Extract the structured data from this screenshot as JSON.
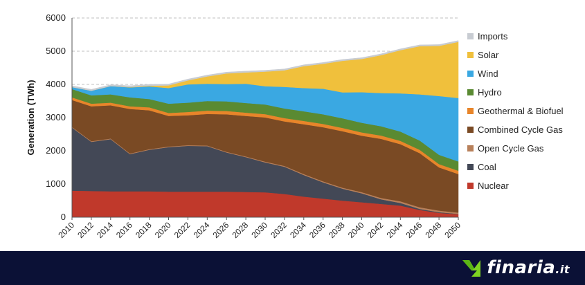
{
  "chart_data": {
    "type": "area",
    "stacked": true,
    "ylabel": "Generation (TWh)",
    "xlabel": "",
    "title": "",
    "ylim": [
      0,
      6000
    ],
    "yticks": [
      0,
      1000,
      2000,
      3000,
      4000,
      5000,
      6000
    ],
    "grid": "horizontal dashed",
    "legend_position": "right",
    "x": [
      2010,
      2012,
      2014,
      2016,
      2018,
      2020,
      2022,
      2024,
      2026,
      2028,
      2030,
      2032,
      2034,
      2036,
      2038,
      2040,
      2042,
      2044,
      2046,
      2048,
      2050
    ],
    "x_tick_labels": [
      "2010",
      "2012",
      "2014",
      "2016",
      "2018",
      "2020",
      "2022",
      "2024",
      "2026",
      "2028",
      "2030",
      "2032",
      "2034",
      "2036",
      "2038",
      "2040",
      "2042",
      "2044",
      "2046",
      "2048",
      "2050"
    ],
    "series": [
      {
        "name": "Nuclear",
        "color": "#c0392b",
        "values": [
          800,
          790,
          780,
          780,
          780,
          770,
          770,
          770,
          770,
          760,
          750,
          700,
          620,
          560,
          500,
          450,
          400,
          350,
          220,
          130,
          90
        ]
      },
      {
        "name": "Coal",
        "color": "#434856",
        "values": [
          1900,
          1480,
          1570,
          1120,
          1250,
          1340,
          1380,
          1370,
          1180,
          1050,
          900,
          820,
          650,
          490,
          360,
          270,
          140,
          80,
          30,
          20,
          10
        ]
      },
      {
        "name": "Open Cycle Gas",
        "color": "#b8805a",
        "values": [
          20,
          20,
          20,
          20,
          20,
          20,
          20,
          20,
          20,
          20,
          25,
          25,
          30,
          30,
          30,
          35,
          40,
          50,
          50,
          50,
          40
        ]
      },
      {
        "name": "Combined Cycle Gas",
        "color": "#7a4a24",
        "values": [
          810,
          1050,
          1000,
          1340,
          1170,
          920,
          900,
          950,
          1130,
          1220,
          1330,
          1340,
          1500,
          1630,
          1700,
          1700,
          1780,
          1720,
          1630,
          1300,
          1160
        ]
      },
      {
        "name": "Geothermal & Biofuel",
        "color": "#e8852a",
        "values": [
          80,
          80,
          80,
          80,
          90,
          90,
          100,
          100,
          100,
          100,
          100,
          100,
          100,
          100,
          100,
          100,
          100,
          100,
          100,
          100,
          100
        ]
      },
      {
        "name": "Hydro",
        "color": "#5a8a32",
        "values": [
          250,
          250,
          250,
          270,
          250,
          280,
          280,
          290,
          290,
          290,
          290,
          290,
          290,
          290,
          290,
          290,
          280,
          280,
          280,
          280,
          280
        ]
      },
      {
        "name": "Wind",
        "color": "#3aa8e2",
        "values": [
          60,
          140,
          250,
          300,
          380,
          470,
          550,
          520,
          520,
          580,
          550,
          650,
          700,
          770,
          780,
          920,
          1000,
          1150,
          1390,
          1770,
          1910
        ]
      },
      {
        "name": "Solar",
        "color": "#f0c03c",
        "values": [
          0,
          0,
          0,
          10,
          20,
          80,
          120,
          220,
          320,
          340,
          440,
          500,
          660,
          750,
          950,
          1000,
          1140,
          1300,
          1450,
          1510,
          1690
        ]
      },
      {
        "name": "Imports",
        "color": "#c8ccd2",
        "values": [
          40,
          40,
          40,
          40,
          40,
          40,
          40,
          40,
          40,
          40,
          40,
          40,
          40,
          40,
          40,
          40,
          40,
          40,
          40,
          40,
          40
        ]
      }
    ],
    "legend_order": [
      "Imports",
      "Solar",
      "Wind",
      "Hydro",
      "Geothermal & Biofuel",
      "Combined Cycle Gas",
      "Open Cycle Gas",
      "Coal",
      "Nuclear"
    ]
  },
  "footer": {
    "brand_name": "finaria",
    "brand_suffix": ".it",
    "background": "#0b1136",
    "logo_icon": "green-arrow-logo-icon"
  }
}
